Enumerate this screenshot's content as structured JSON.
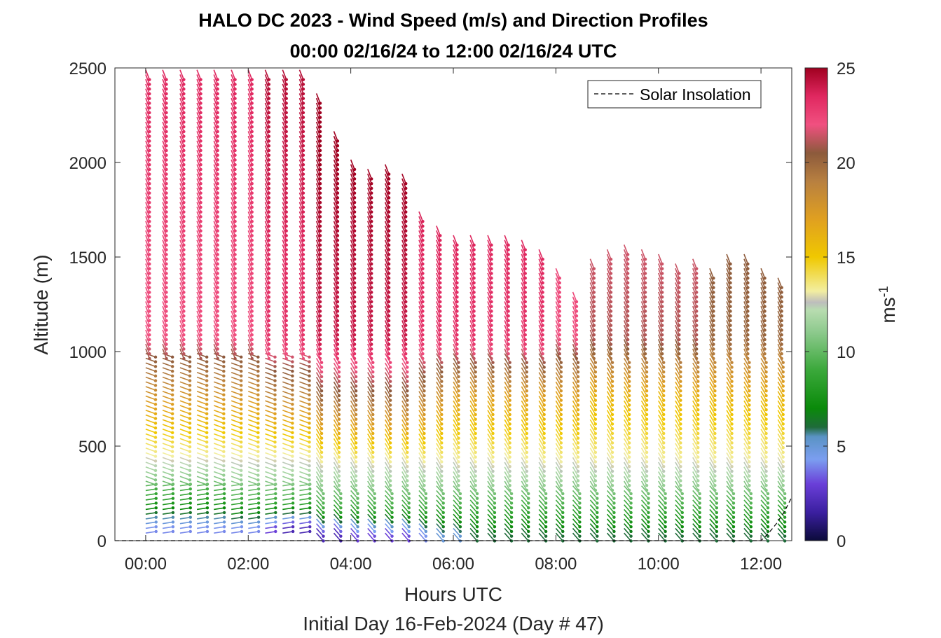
{
  "chart_data": {
    "type": "wind-barb-profile",
    "title": "HALO DC 2023 - Wind Speed (m/s) and Direction Profiles",
    "subtitle": "00:00 02/16/24 to 12:00 02/16/24  UTC",
    "xlabel": "Hours UTC",
    "xlabel2": "Initial Day 16-Feb-2024 (Day # 47)",
    "ylabel": "Altitude (m)",
    "xlim": [
      -0.6,
      12.6
    ],
    "ylim": [
      0,
      2500
    ],
    "x_ticks": [
      0,
      2,
      4,
      6,
      8,
      10,
      12
    ],
    "x_tick_labels": [
      "00:00",
      "02:00",
      "04:00",
      "06:00",
      "08:00",
      "10:00",
      "12:00"
    ],
    "y_ticks": [
      0,
      500,
      1000,
      1500,
      2000,
      2500
    ],
    "y_tick_labels": [
      "0",
      "500",
      "1000",
      "1500",
      "2000",
      "2500"
    ],
    "colorbar": {
      "label": "ms",
      "label_exponent": "-1",
      "range": [
        0,
        25
      ],
      "ticks": [
        0,
        5,
        10,
        15,
        20,
        25
      ],
      "tick_labels": [
        "0",
        "5",
        "10",
        "15",
        "20",
        "25"
      ],
      "stops": [
        {
          "v": 0,
          "c": "#0b0b3a"
        },
        {
          "v": 1.5,
          "c": "#3b1fa0"
        },
        {
          "v": 3,
          "c": "#6a3fd8"
        },
        {
          "v": 4.3,
          "c": "#7b9ef0"
        },
        {
          "v": 5.5,
          "c": "#5a93c4"
        },
        {
          "v": 6,
          "c": "#1f6b3a"
        },
        {
          "v": 7,
          "c": "#0a8a0a"
        },
        {
          "v": 9,
          "c": "#3aa83a"
        },
        {
          "v": 11,
          "c": "#8cc98c"
        },
        {
          "v": 12.2,
          "c": "#b8dcb0"
        },
        {
          "v": 12.6,
          "c": "#bdbdbd"
        },
        {
          "v": 13.2,
          "c": "#f2eea0"
        },
        {
          "v": 15,
          "c": "#f0c800"
        },
        {
          "v": 17,
          "c": "#e0a020"
        },
        {
          "v": 19,
          "c": "#b88040"
        },
        {
          "v": 20.5,
          "c": "#8c5a3c"
        },
        {
          "v": 22,
          "c": "#f05080"
        },
        {
          "v": 23.5,
          "c": "#e02860"
        },
        {
          "v": 25,
          "c": "#a00020"
        }
      ]
    },
    "legend": {
      "label": "Solar Insolation",
      "placement": "top-right",
      "line_style": "dashed"
    },
    "solar_insolation": {
      "x": [
        -0.6,
        12.0,
        12.15,
        12.3,
        12.45,
        12.6
      ],
      "y": [
        0,
        0,
        40,
        90,
        150,
        230
      ]
    },
    "profiles": [
      {
        "t": 0.0,
        "top": 2500,
        "sfc": 4,
        "jet": 8,
        "mid": 18,
        "upper": 22
      },
      {
        "t": 0.33,
        "top": 2500,
        "sfc": 4,
        "jet": 8,
        "mid": 18,
        "upper": 22
      },
      {
        "t": 0.67,
        "top": 2500,
        "sfc": 4,
        "jet": 8,
        "mid": 18,
        "upper": 22
      },
      {
        "t": 1.0,
        "top": 2500,
        "sfc": 4,
        "jet": 8,
        "mid": 18,
        "upper": 22
      },
      {
        "t": 1.33,
        "top": 2500,
        "sfc": 4,
        "jet": 8,
        "mid": 18,
        "upper": 22
      },
      {
        "t": 1.67,
        "top": 2500,
        "sfc": 4,
        "jet": 9,
        "mid": 18,
        "upper": 22
      },
      {
        "t": 2.0,
        "top": 2500,
        "sfc": 4,
        "jet": 9,
        "mid": 18,
        "upper": 22
      },
      {
        "t": 2.33,
        "top": 2500,
        "sfc": 3,
        "jet": 9,
        "mid": 19,
        "upper": 23
      },
      {
        "t": 2.67,
        "top": 2500,
        "sfc": 2,
        "jet": 9,
        "mid": 19,
        "upper": 23
      },
      {
        "t": 3.0,
        "top": 2500,
        "sfc": 2,
        "jet": 9,
        "mid": 19,
        "upper": 23
      },
      {
        "t": 3.33,
        "top": 2370,
        "sfc": 2,
        "jet": 9,
        "mid": 20,
        "upper": 24
      },
      {
        "t": 3.67,
        "top": 2180,
        "sfc": 2,
        "jet": 9,
        "mid": 20,
        "upper": 24
      },
      {
        "t": 4.0,
        "top": 2030,
        "sfc": 3,
        "jet": 9,
        "mid": 20,
        "upper": 24
      },
      {
        "t": 4.33,
        "top": 1970,
        "sfc": 3,
        "jet": 9,
        "mid": 20,
        "upper": 24
      },
      {
        "t": 4.67,
        "top": 2010,
        "sfc": 3,
        "jet": 9,
        "mid": 20,
        "upper": 24
      },
      {
        "t": 5.0,
        "top": 1960,
        "sfc": 3,
        "jet": 9,
        "mid": 20,
        "upper": 24
      },
      {
        "t": 5.33,
        "top": 1740,
        "sfc": 4,
        "jet": 9,
        "mid": 19,
        "upper": 23
      },
      {
        "t": 5.67,
        "top": 1680,
        "sfc": 5,
        "jet": 9,
        "mid": 18,
        "upper": 23
      },
      {
        "t": 6.0,
        "top": 1620,
        "sfc": 5,
        "jet": 9,
        "mid": 17,
        "upper": 23
      },
      {
        "t": 6.33,
        "top": 1620,
        "sfc": 6,
        "jet": 9,
        "mid": 17,
        "upper": 23
      },
      {
        "t": 6.67,
        "top": 1620,
        "sfc": 6,
        "jet": 9,
        "mid": 17,
        "upper": 23
      },
      {
        "t": 7.0,
        "top": 1620,
        "sfc": 6,
        "jet": 9,
        "mid": 17,
        "upper": 23
      },
      {
        "t": 7.33,
        "top": 1610,
        "sfc": 6,
        "jet": 9,
        "mid": 17,
        "upper": 23
      },
      {
        "t": 7.67,
        "top": 1550,
        "sfc": 6,
        "jet": 9,
        "mid": 17,
        "upper": 23
      },
      {
        "t": 8.0,
        "top": 1460,
        "sfc": 6,
        "jet": 9,
        "mid": 17,
        "upper": 22
      },
      {
        "t": 8.33,
        "top": 1330,
        "sfc": 6,
        "jet": 9,
        "mid": 17,
        "upper": 22
      },
      {
        "t": 8.67,
        "top": 1490,
        "sfc": 6,
        "jet": 9,
        "mid": 16,
        "upper": 21
      },
      {
        "t": 9.0,
        "top": 1540,
        "sfc": 6,
        "jet": 9,
        "mid": 16,
        "upper": 21
      },
      {
        "t": 9.33,
        "top": 1570,
        "sfc": 6,
        "jet": 9,
        "mid": 16,
        "upper": 21
      },
      {
        "t": 9.67,
        "top": 1540,
        "sfc": 6,
        "jet": 9,
        "mid": 16,
        "upper": 21
      },
      {
        "t": 10.0,
        "top": 1530,
        "sfc": 6,
        "jet": 9,
        "mid": 16,
        "upper": 21
      },
      {
        "t": 10.33,
        "top": 1480,
        "sfc": 6,
        "jet": 9,
        "mid": 16,
        "upper": 21
      },
      {
        "t": 10.67,
        "top": 1500,
        "sfc": 6,
        "jet": 9,
        "mid": 16,
        "upper": 21
      },
      {
        "t": 11.0,
        "top": 1460,
        "sfc": 6,
        "jet": 9,
        "mid": 16,
        "upper": 20
      },
      {
        "t": 11.33,
        "top": 1530,
        "sfc": 6,
        "jet": 9,
        "mid": 16,
        "upper": 20
      },
      {
        "t": 11.67,
        "top": 1530,
        "sfc": 6,
        "jet": 9,
        "mid": 16,
        "upper": 20
      },
      {
        "t": 12.0,
        "top": 1460,
        "sfc": 6,
        "jet": 9,
        "mid": 16,
        "upper": 20
      },
      {
        "t": 12.33,
        "top": 1400,
        "sfc": 6,
        "jet": 9,
        "mid": 16,
        "upper": 20
      }
    ]
  }
}
